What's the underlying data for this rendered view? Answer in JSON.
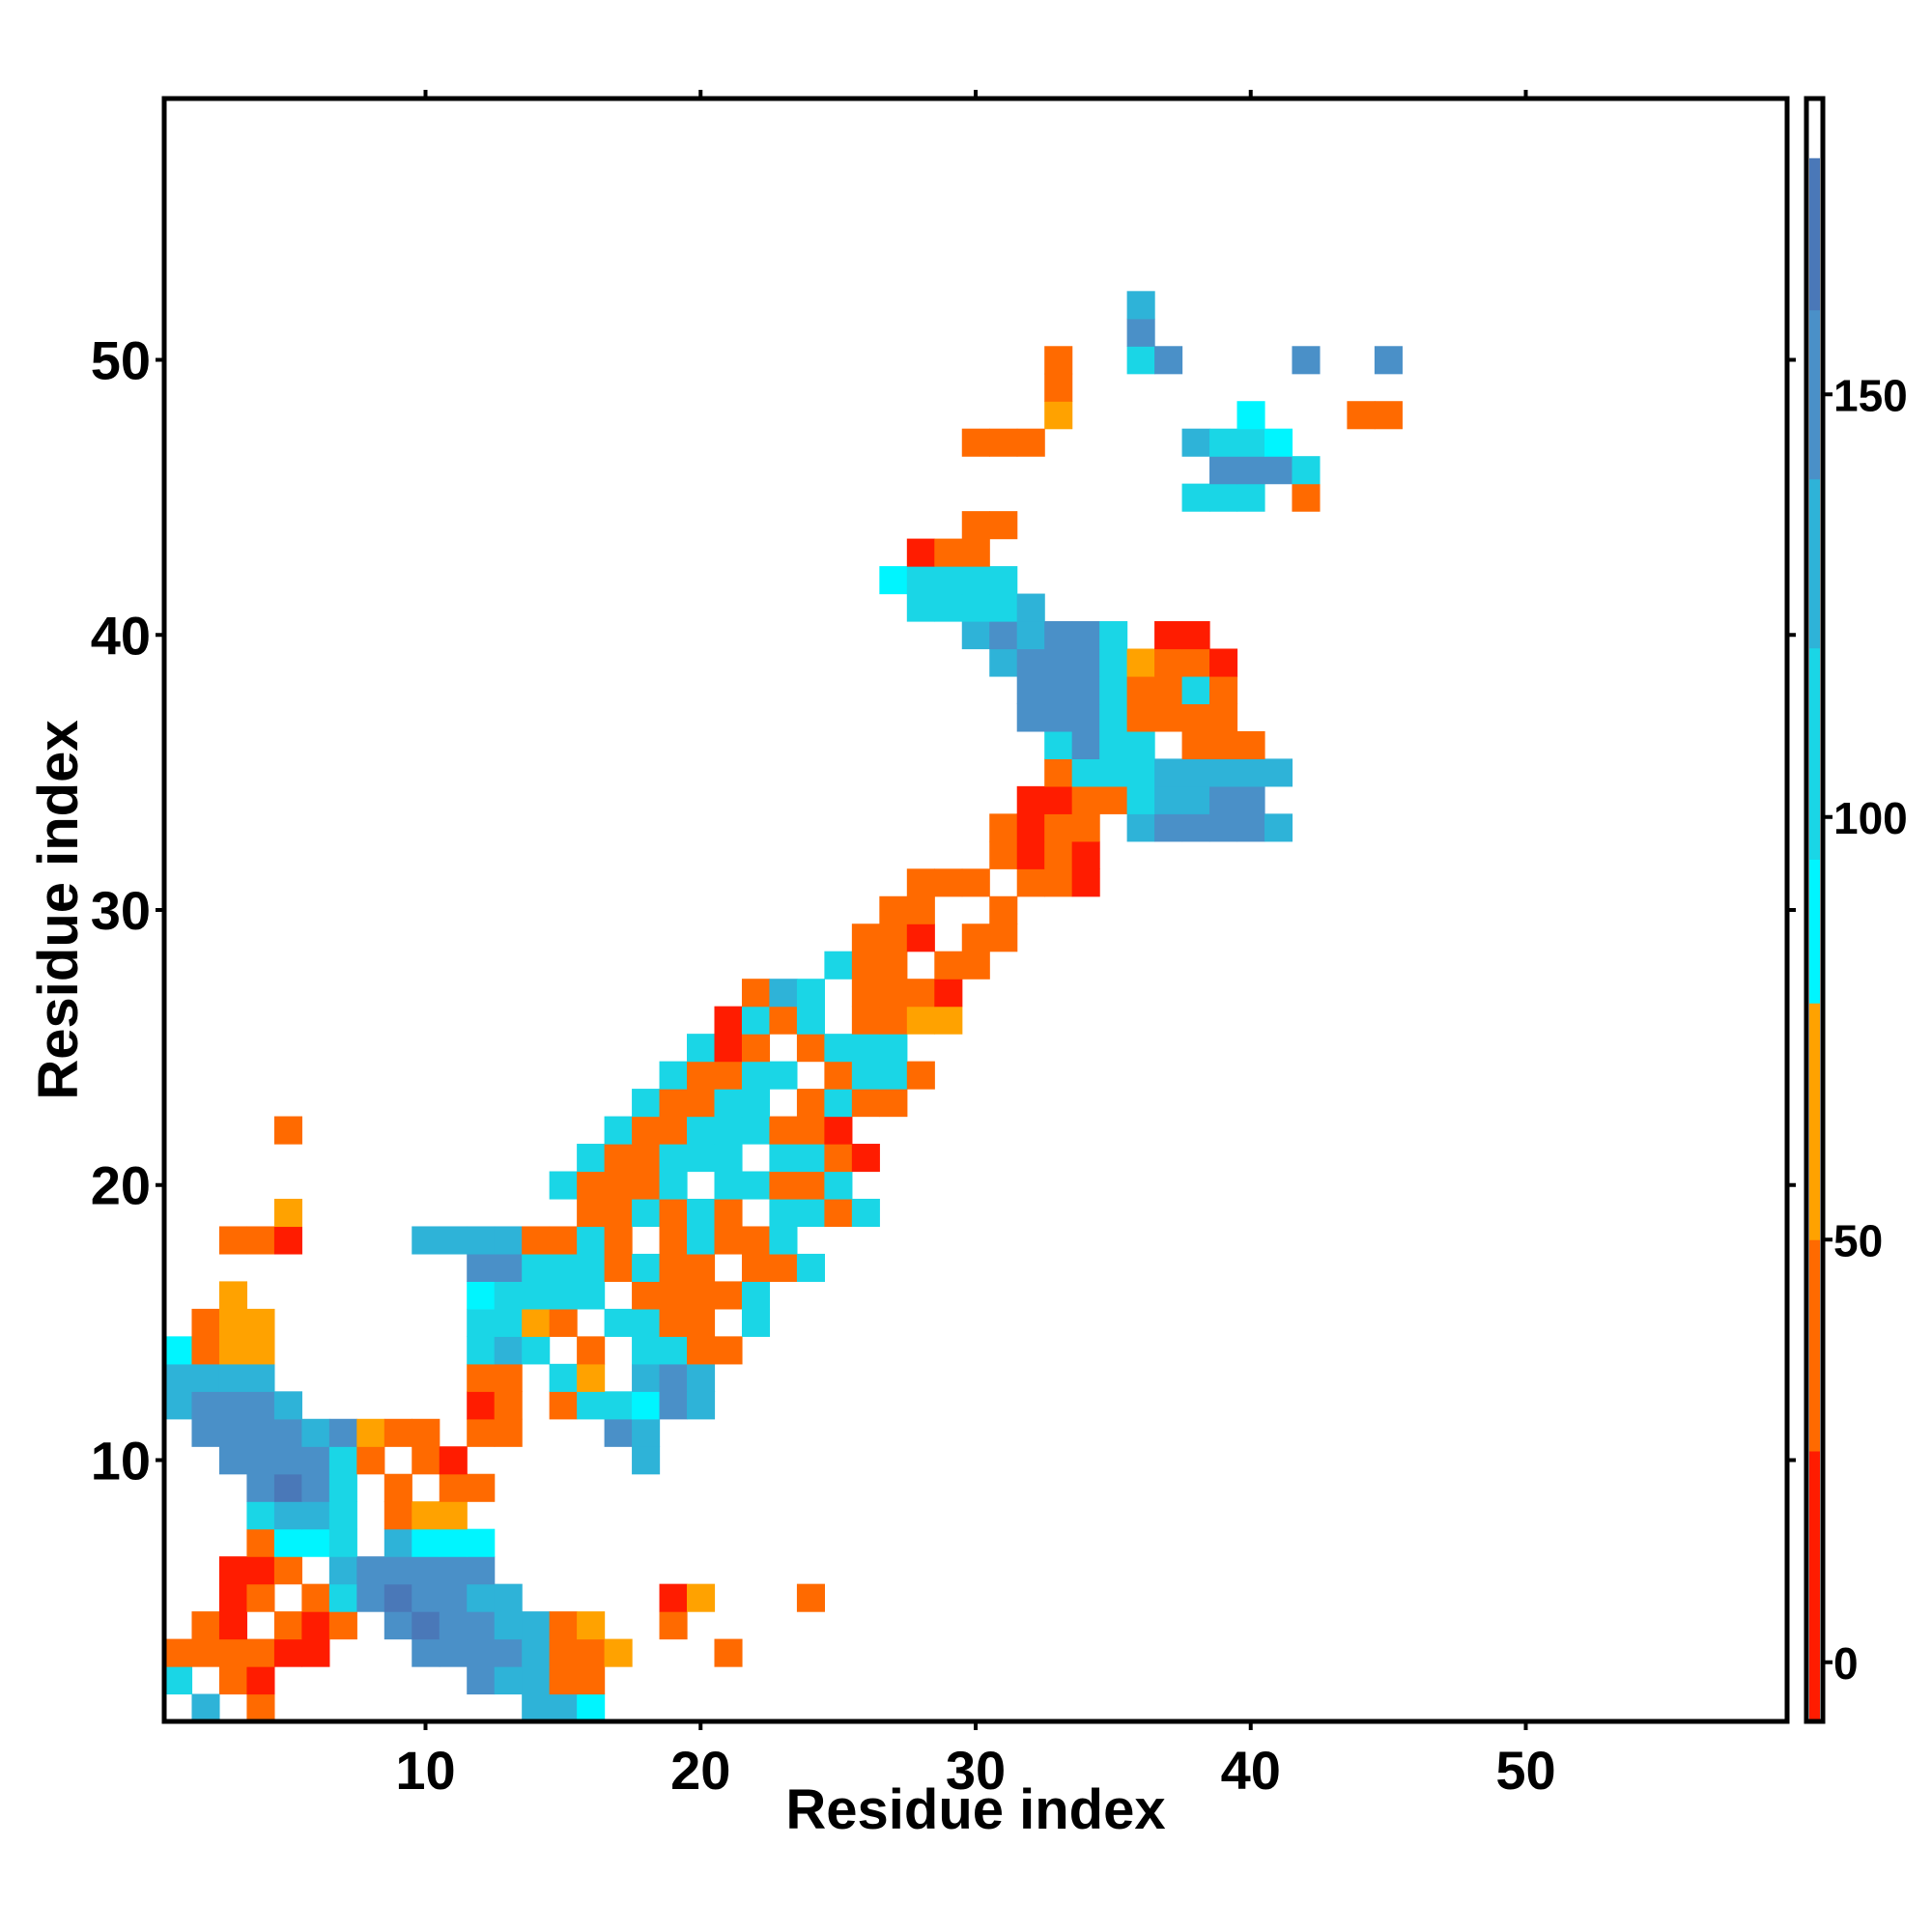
{
  "chart_data": {
    "type": "heatmap",
    "title": "",
    "xlabel": "Residue index",
    "ylabel": "Residue index",
    "xlim": [
      0.5,
      59.5
    ],
    "ylim": [
      0.5,
      59.5
    ],
    "x_ticks": [
      10,
      20,
      30,
      40,
      50
    ],
    "y_ticks": [
      10,
      20,
      30,
      40,
      50
    ],
    "grid": false,
    "legend": "colorbar-right",
    "colorbar": {
      "range": [
        -7,
        185
      ],
      "ticks": [
        0,
        50,
        100,
        150
      ],
      "stops": [
        {
          "from": -7,
          "to": 25,
          "color": "#ff1c00"
        },
        {
          "from": 25,
          "to": 50,
          "color": "#ff6a00"
        },
        {
          "from": 50,
          "to": 78,
          "color": "#ffa200"
        },
        {
          "from": 78,
          "to": 95,
          "color": "#00f5ff"
        },
        {
          "from": 95,
          "to": 120,
          "color": "#1ad6e6"
        },
        {
          "from": 120,
          "to": 140,
          "color": "#2eb3d8"
        },
        {
          "from": 140,
          "to": 160,
          "color": "#4a90c8"
        },
        {
          "from": 160,
          "to": 178,
          "color": "#4a78b8"
        },
        {
          "from": 178,
          "to": 185,
          "color": "#ffffff"
        }
      ]
    },
    "color_classes": {
      "R": {
        "color": "#ff1c00",
        "value": 10
      },
      "O": {
        "color": "#ff6a00",
        "value": 38
      },
      "Y": {
        "color": "#ffa200",
        "value": 65
      },
      "C": {
        "color": "#00f5ff",
        "value": 87
      },
      "T": {
        "color": "#1ad6e6",
        "value": 108
      },
      "B": {
        "color": "#2eb3d8",
        "value": 128
      },
      "M": {
        "color": "#4a90c8",
        "value": 150
      },
      "D": {
        "color": "#4a78b8",
        "value": 168
      }
    },
    "rows": [
      {
        "y": 1,
        "x0": 2,
        "cells": "B.O.........BBC"
      },
      {
        "y": 2,
        "x0": 1,
        "cells": "T.OR.......MBBOO"
      },
      {
        "y": 3,
        "x0": 1,
        "cells": "OOOORR...MMMMBOOY...O"
      },
      {
        "y": 4,
        "x0": 2,
        "cells": "OR.ORO.MDMMBBOY..O"
      },
      {
        "y": 5,
        "x0": 3,
        "cells": "RO.OTMDMMBB.....RY...O"
      },
      {
        "y": 6,
        "x0": 3,
        "cells": "RRO.BMMMMM"
      },
      {
        "y": 7,
        "x0": 4,
        "cells": "OCCT.BCCC"
      },
      {
        "y": 8,
        "x0": 4,
        "cells": "TBBT.OYY"
      },
      {
        "y": 9,
        "x0": 4,
        "cells": "MDMT.O.OO"
      },
      {
        "y": 10,
        "x0": 3,
        "cells": "MMMMTO.OR......B"
      },
      {
        "y": 11,
        "x0": 2,
        "cells": "MMMMBMYOO.OO...MB"
      },
      {
        "y": 12,
        "x0": 1,
        "cells": "BMMMB......RO.OTTCMB"
      },
      {
        "y": 13,
        "x0": 1,
        "cells": "BBBB.......OO.TY.BMB"
      },
      {
        "y": 14,
        "x0": 1,
        "cells": "COYY.......TBT.O.TTOO"
      },
      {
        "y": 15,
        "x0": 2,
        "cells": "OYY.......TTYO.TTOO.T"
      },
      {
        "y": 16,
        "x0": 3,
        "cells": "Y........CTTTT.OOOOT"
      },
      {
        "y": 17,
        "x0": 12,
        "cells": "MMTTTOTOO.OOT"
      },
      {
        "y": 18,
        "x0": 3,
        "cells": "OOR....BBBBOOTO.OTOOT"
      },
      {
        "y": 19,
        "x0": 5,
        "cells": "Y..........OOTOTO.TTOT"
      },
      {
        "y": 20,
        "x0": 15,
        "cells": "TOOOT.TTOOT"
      },
      {
        "y": 21,
        "x0": 16,
        "cells": "TOOTTT.TTOR"
      },
      {
        "y": 22,
        "x0": 5,
        "cells": "O...........TOOTTTOOR"
      },
      {
        "y": 23,
        "x0": 18,
        "cells": "TOOTT.OTOO"
      },
      {
        "y": 24,
        "x0": 19,
        "cells": "TOOTT.OTTO"
      },
      {
        "y": 25,
        "x0": 20,
        "cells": "TRO.OTTT"
      },
      {
        "y": 26,
        "x0": 21,
        "cells": "RTOT.OOYY"
      },
      {
        "y": 27,
        "x0": 22,
        "cells": "OBT.OOOR"
      },
      {
        "y": 28,
        "x0": 25,
        "cells": "TOO.OO"
      },
      {
        "y": 29,
        "x0": 26,
        "cells": "OOR.OO"
      },
      {
        "y": 30,
        "x0": 27,
        "cells": "OO..O"
      },
      {
        "y": 31,
        "x0": 28,
        "cells": "OOO.OOR"
      },
      {
        "y": 32,
        "x0": 31,
        "cells": "OROR"
      },
      {
        "y": 33,
        "x0": 31,
        "cells": "OROO.BMMMMB"
      },
      {
        "y": 34,
        "x0": 32,
        "cells": "RROOTBBMM"
      },
      {
        "y": 35,
        "x0": 33,
        "cells": "OTTTBBBBB"
      },
      {
        "y": 36,
        "x0": 33,
        "cells": "TMTT.OOO"
      },
      {
        "y": 37,
        "x0": 32,
        "cells": "MMMTOOOO"
      },
      {
        "y": 38,
        "x0": 32,
        "cells": "MMMTOOTO"
      },
      {
        "y": 39,
        "x0": 31,
        "cells": "BMMMTYOOR"
      },
      {
        "y": 40,
        "x0": 30,
        "cells": "BMBMMT.RR"
      },
      {
        "y": 41,
        "x0": 28,
        "cells": "TTTTB"
      },
      {
        "y": 42,
        "x0": 27,
        "cells": "CTTTT"
      },
      {
        "y": 43,
        "x0": 28,
        "cells": "ROO"
      },
      {
        "y": 44,
        "x0": 30,
        "cells": "OO"
      },
      {
        "y": 45,
        "x0": 38,
        "cells": "TTT.O"
      },
      {
        "y": 46,
        "x0": 39,
        "cells": "MMMT"
      },
      {
        "y": 47,
        "x0": 30,
        "cells": "OOO.....BTTC"
      },
      {
        "y": 48,
        "x0": 33,
        "cells": "Y......C...OO"
      },
      {
        "y": 49,
        "x0": 33,
        "cells": "O"
      },
      {
        "y": 50,
        "x0": 33,
        "cells": "O..TM....M..M"
      },
      {
        "y": 51,
        "x0": 36,
        "cells": "M"
      },
      {
        "y": 52,
        "x0": 36,
        "cells": "B"
      }
    ]
  }
}
